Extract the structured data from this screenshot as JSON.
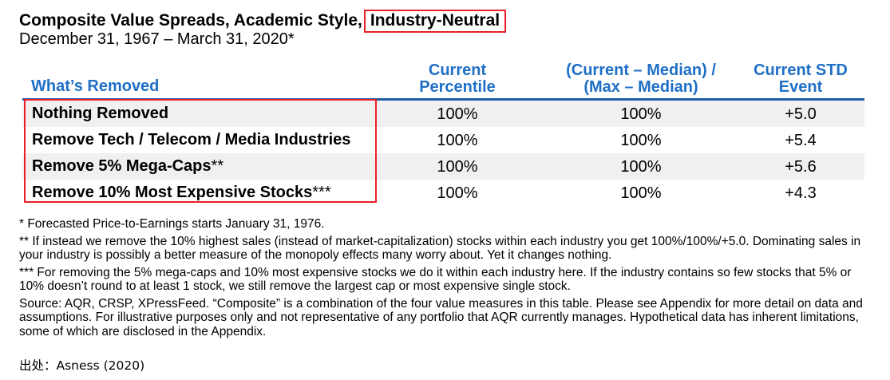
{
  "title": {
    "main": "Composite Value Spreads, Academic Style,",
    "highlight": "Industry-Neutral"
  },
  "subtitle": "December 31, 1967 – March 31, 2020*",
  "table": {
    "headers": {
      "col0": "What’s Removed",
      "col1_line1": "Current",
      "col1_line2": "Percentile",
      "col2_line1": "(Current – Median) /",
      "col2_line2": "(Max – Median)",
      "col3_line1": "Current STD",
      "col3_line2": "Event"
    },
    "rows": [
      {
        "label": "Nothing Removed",
        "stars": "",
        "percentile": "100%",
        "ratio": "100%",
        "std": "+5.0"
      },
      {
        "label": "Remove Tech / Telecom / Media Industries",
        "stars": "",
        "percentile": "100%",
        "ratio": "100%",
        "std": "+5.4"
      },
      {
        "label": "Remove 5% Mega-Caps",
        "stars": "**",
        "percentile": "100%",
        "ratio": "100%",
        "std": "+5.6"
      },
      {
        "label": "Remove 10% Most Expensive Stocks",
        "stars": "***",
        "percentile": "100%",
        "ratio": "100%",
        "std": "+4.3"
      }
    ]
  },
  "footnotes": [
    "* Forecasted Price-to-Earnings starts January 31, 1976.",
    "** If instead we remove the 10% highest sales (instead of market-capitalization) stocks within each industry you get 100%/100%/+5.0. Dominating sales in your industry is possibly a better measure of the monopoly effects many worry about. Yet it changes nothing.",
    "*** For removing the 5% mega-caps and 10% most expensive stocks we do it within each industry here. If the industry contains so few stocks that 5% or 10% doesn’t round to at least 1 stock, we still remove the largest cap or most expensive single stock.",
    "Source: AQR, CRSP, XPressFeed. “Composite” is a combination of the four value measures in this table. Please see Appendix for more detail on data and assumptions. For illustrative purposes only and not representative of any portfolio that AQR currently manages. Hypothetical data has inherent limitations, some of which are disclosed in the Appendix."
  ],
  "source_line": "出处：Asness (2020)",
  "colors": {
    "header_blue": "#1f6fc6",
    "highlight_red": "#e8202a",
    "row_shade": "#f0f0f0"
  }
}
